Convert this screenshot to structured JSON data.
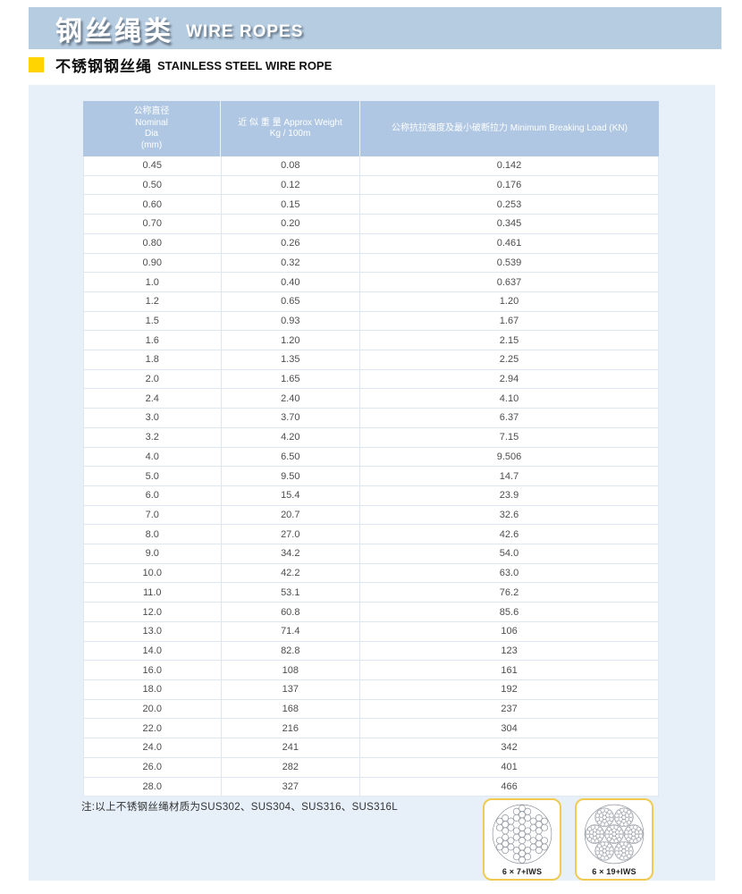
{
  "banner": {
    "title_zh": "钢丝绳类",
    "title_en": "WIRE ROPES"
  },
  "section": {
    "title_zh": "不锈钢钢丝绳",
    "title_en": "STAINLESS STEEL WIRE ROPE"
  },
  "table": {
    "columns": [
      {
        "lines": [
          "公称直径",
          "Nominal",
          "Dia",
          "(mm)"
        ]
      },
      {
        "lines": [
          "近 似 重 量 Approx Weight",
          "Kg / 100m"
        ]
      },
      {
        "lines": [
          "公称抗拉强度及最小破断拉力 Minimum Breaking Load (KN)"
        ]
      }
    ],
    "rows": [
      [
        "0.45",
        "0.08",
        "0.142"
      ],
      [
        "0.50",
        "0.12",
        "0.176"
      ],
      [
        "0.60",
        "0.15",
        "0.253"
      ],
      [
        "0.70",
        "0.20",
        "0.345"
      ],
      [
        "0.80",
        "0.26",
        "0.461"
      ],
      [
        "0.90",
        "0.32",
        "0.539"
      ],
      [
        "1.0",
        "0.40",
        "0.637"
      ],
      [
        "1.2",
        "0.65",
        "1.20"
      ],
      [
        "1.5",
        "0.93",
        "1.67"
      ],
      [
        "1.6",
        "1.20",
        "2.15"
      ],
      [
        "1.8",
        "1.35",
        "2.25"
      ],
      [
        "2.0",
        "1.65",
        "2.94"
      ],
      [
        "2.4",
        "2.40",
        "4.10"
      ],
      [
        "3.0",
        "3.70",
        "6.37"
      ],
      [
        "3.2",
        "4.20",
        "7.15"
      ],
      [
        "4.0",
        "6.50",
        "9.506"
      ],
      [
        "5.0",
        "9.50",
        "14.7"
      ],
      [
        "6.0",
        "15.4",
        "23.9"
      ],
      [
        "7.0",
        "20.7",
        "32.6"
      ],
      [
        "8.0",
        "27.0",
        "42.6"
      ],
      [
        "9.0",
        "34.2",
        "54.0"
      ],
      [
        "10.0",
        "42.2",
        "63.0"
      ],
      [
        "11.0",
        "53.1",
        "76.2"
      ],
      [
        "12.0",
        "60.8",
        "85.6"
      ],
      [
        "13.0",
        "71.4",
        "106"
      ],
      [
        "14.0",
        "82.8",
        "123"
      ],
      [
        "16.0",
        "108",
        "161"
      ],
      [
        "18.0",
        "137",
        "192"
      ],
      [
        "20.0",
        "168",
        "237"
      ],
      [
        "22.0",
        "216",
        "304"
      ],
      [
        "24.0",
        "241",
        "342"
      ],
      [
        "26.0",
        "282",
        "401"
      ],
      [
        "28.0",
        "327",
        "466"
      ]
    ]
  },
  "note": "注:以上不锈钢丝绳材质为SUS302、SUS304、SUS316、SUS316L",
  "ropes": [
    {
      "label": "6 × 7+IWS",
      "wires_per_strand": 7
    },
    {
      "label": "6 × 19+IWS",
      "wires_per_strand": 19
    }
  ],
  "colors": {
    "banner_bg": "#b6cce1",
    "table_header_bg": "#afc7e2",
    "panel_bg": "#e7f0f9",
    "bullet_yellow": "#ffd400",
    "card_border": "#f0ca52"
  }
}
